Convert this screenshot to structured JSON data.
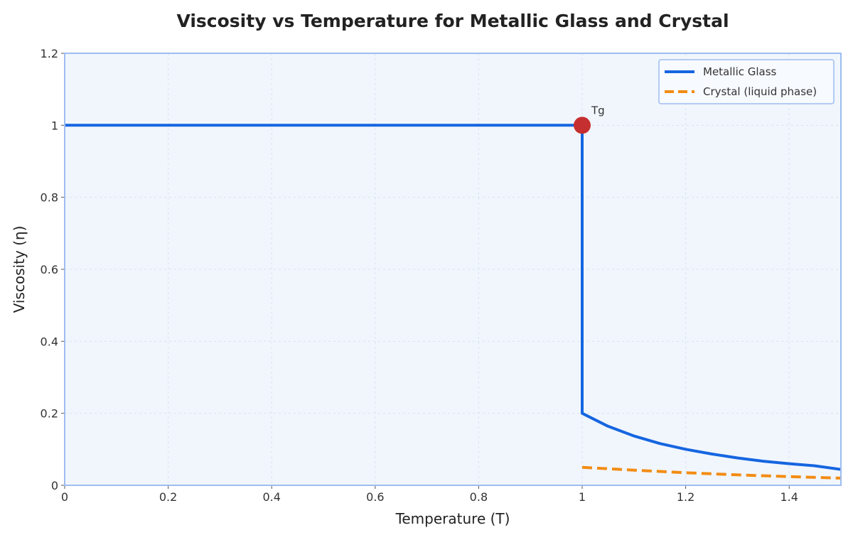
{
  "chart_data": {
    "type": "line",
    "title": "Viscosity vs Temperature for Metallic Glass and Crystal",
    "xlabel": "Temperature (T)",
    "ylabel": "Viscosity (η)",
    "xlim": [
      0,
      1.5
    ],
    "ylim": [
      0,
      1.2
    ],
    "xticks": [
      0,
      0.2,
      0.4,
      0.6,
      0.8,
      1,
      1.2,
      1.4
    ],
    "yticks": [
      0,
      0.2,
      0.4,
      0.6,
      0.8,
      1,
      1.2
    ],
    "xtick_labels": [
      "0",
      "0.2",
      "0.4",
      "0.6",
      "0.8",
      "1",
      "1.2",
      "1.4"
    ],
    "ytick_labels": [
      "0",
      "0.2",
      "0.4",
      "0.6",
      "0.8",
      "1",
      "1.2"
    ],
    "grid": true,
    "legend_position": "top-right",
    "series": [
      {
        "name": "Metallic Glass",
        "color": "#1565e0",
        "style": "solid",
        "x": [
          0,
          1,
          1,
          1.05,
          1.1,
          1.15,
          1.2,
          1.25,
          1.3,
          1.35,
          1.4,
          1.45,
          1.5
        ],
        "y": [
          1,
          1,
          0.2,
          0.164,
          0.137,
          0.116,
          0.1,
          0.087,
          0.076,
          0.067,
          0.06,
          0.054,
          0.044
        ]
      },
      {
        "name": "Crystal (liquid phase)",
        "color": "#f28c13",
        "style": "dashed",
        "x": [
          1,
          1.1,
          1.2,
          1.3,
          1.4,
          1.5
        ],
        "y": [
          0.05,
          0.042,
          0.035,
          0.029,
          0.024,
          0.02
        ]
      }
    ],
    "annotations": [
      {
        "text": "Tg",
        "x": 1,
        "y": 1,
        "marker_color": "#c62f2f"
      }
    ],
    "colors": {
      "plot_background": "#f1f6fd",
      "frame": "#9dbdf0",
      "grid": "#d8e2ef"
    }
  }
}
